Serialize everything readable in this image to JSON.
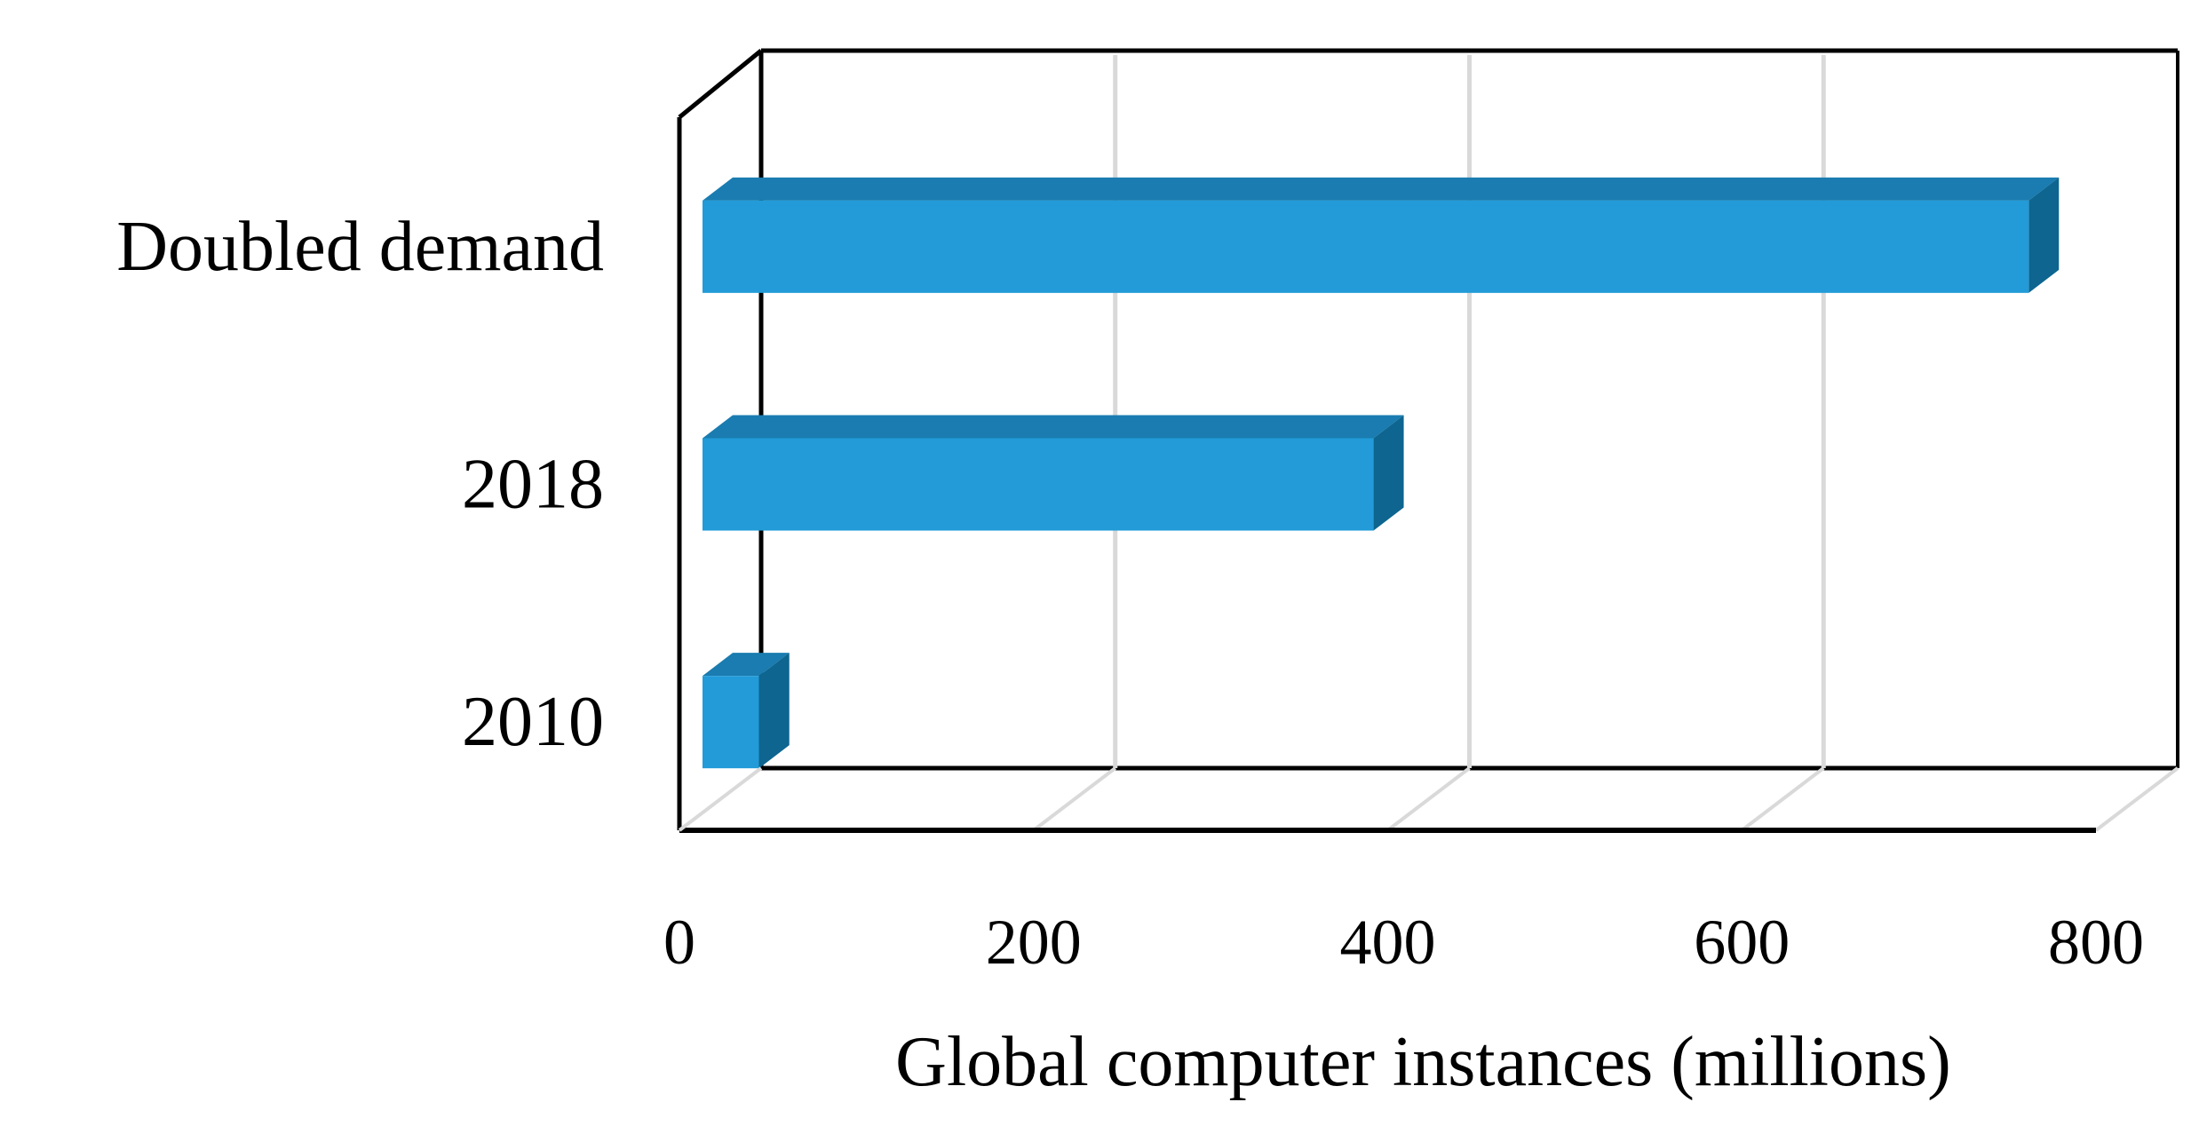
{
  "chart_data": {
    "type": "bar",
    "orientation": "horizontal",
    "style": "3d",
    "categories": [
      "Doubled demand",
      "2018",
      "2010"
    ],
    "values": [
      762,
      392,
      45
    ],
    "xlabel": "Global computer instances (millions)",
    "ylabel": "",
    "xlim": [
      0,
      800
    ],
    "xticks": [
      "0",
      "200",
      "400",
      "600",
      "800"
    ],
    "grid": true,
    "legend": "none",
    "colors": {
      "bar_front": "#229bd8",
      "bar_top": "#1a7cb0",
      "bar_side": "#0d6590",
      "gridline": "#d9d9d9",
      "frame": "#000000"
    }
  }
}
